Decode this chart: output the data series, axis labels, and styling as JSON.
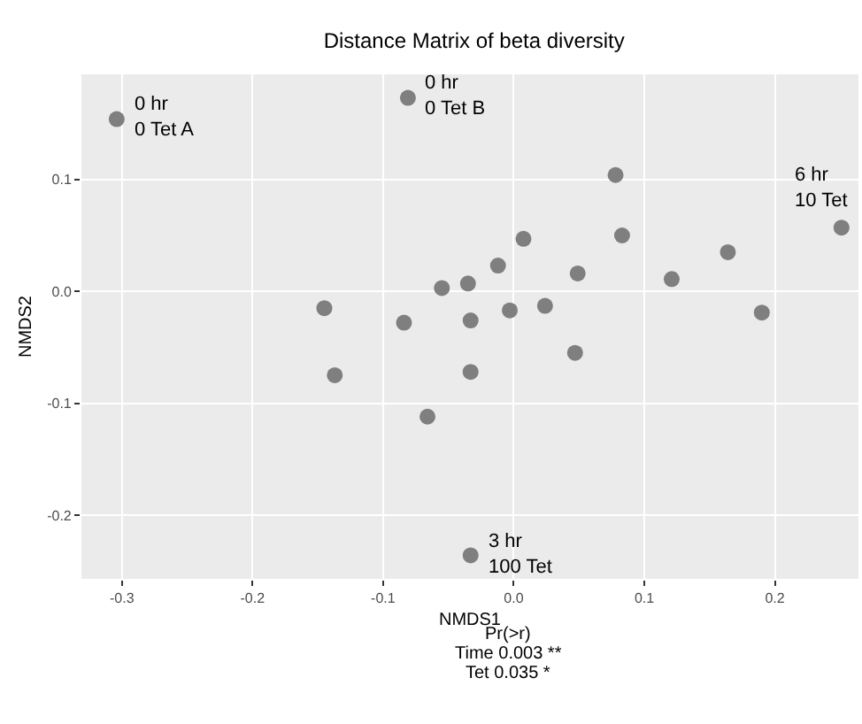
{
  "chart_data": {
    "type": "scatter",
    "title": "Distance Matrix of beta diversity",
    "xlabel": "NMDS1",
    "ylabel": "NMDS2",
    "x": [
      -0.304,
      -0.081,
      0.078,
      0.251,
      0.0075,
      0.083,
      0.164,
      -0.012,
      0.049,
      0.121,
      -0.055,
      -0.035,
      -0.145,
      -0.003,
      0.024,
      0.19,
      -0.084,
      -0.033,
      0.047,
      -0.137,
      -0.033,
      -0.066,
      -0.033
    ],
    "values": [
      0.154,
      0.173,
      0.104,
      0.057,
      0.047,
      0.05,
      0.035,
      0.023,
      0.016,
      0.011,
      0.003,
      0.007,
      -0.015,
      -0.017,
      -0.013,
      -0.019,
      -0.028,
      -0.026,
      -0.055,
      -0.075,
      -0.072,
      -0.112,
      -0.236
    ],
    "color": "#7f7f7f",
    "marker": "circle",
    "xlim": [
      -0.331,
      0.264
    ],
    "ylim": [
      -0.257,
      0.194
    ],
    "xticks": [
      {
        "value": -0.3,
        "label": "-0.3"
      },
      {
        "value": -0.2,
        "label": "-0.2"
      },
      {
        "value": -0.1,
        "label": "-0.1"
      },
      {
        "value": 0,
        "label": "0.0"
      },
      {
        "value": 0.1,
        "label": "0.1"
      },
      {
        "value": 0.2,
        "label": "0.2"
      }
    ],
    "yticks": [
      {
        "value": -0.2,
        "label": "-0.2"
      },
      {
        "value": -0.1,
        "label": "-0.1"
      },
      {
        "value": 0,
        "label": "0.0"
      },
      {
        "value": 0.1,
        "label": "0.1"
      }
    ],
    "grid": true,
    "annotations": [
      {
        "text": "0 hr\n0 Tet A",
        "x": -0.304,
        "y": 0.154
      },
      {
        "text": "0 hr\n0 Tet B",
        "x": -0.081,
        "y": 0.173
      },
      {
        "text": "6 hr\n10 Tet",
        "x": 0.251,
        "y": 0.057
      },
      {
        "text": "3 hr\n100 Tet",
        "x": -0.033,
        "y": -0.236
      },
      "Pr(>r)",
      "Time 0.003 **",
      "Tet 0.035 *"
    ]
  }
}
